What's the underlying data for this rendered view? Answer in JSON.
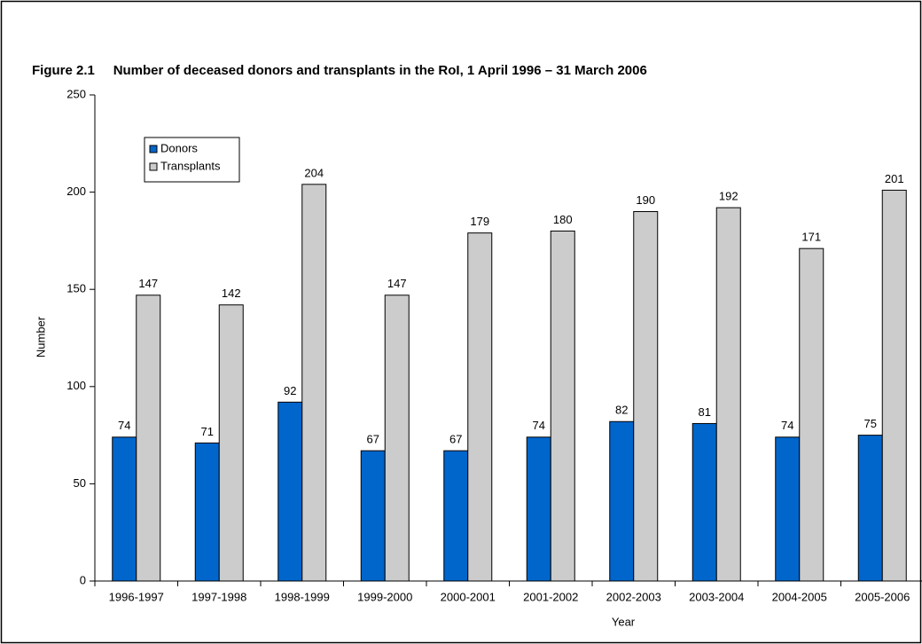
{
  "chart_data": {
    "type": "bar",
    "title": "Figure 2.1     Number of deceased donors and transplants in the RoI, 1 April 1996 – 31 March 2006",
    "x_label": "Year",
    "y_label": "Number",
    "categories": [
      "1996-1997",
      "1997-1998",
      "1998-1999",
      "1999-2000",
      "2000-2001",
      "2001-2002",
      "2002-2003",
      "2003-2004",
      "2004-2005",
      "2005-2006"
    ],
    "series": [
      {
        "name": "Donors",
        "color": "#0066cc",
        "values": [
          74,
          71,
          92,
          67,
          67,
          74,
          82,
          81,
          74,
          75
        ]
      },
      {
        "name": "Transplants",
        "color": "#cccccc",
        "values": [
          147,
          142,
          204,
          147,
          179,
          180,
          190,
          192,
          171,
          201
        ]
      }
    ],
    "ylim": [
      0,
      250
    ],
    "yticks": [
      0,
      50,
      100,
      150,
      200,
      250
    ],
    "legend": "upper left"
  }
}
